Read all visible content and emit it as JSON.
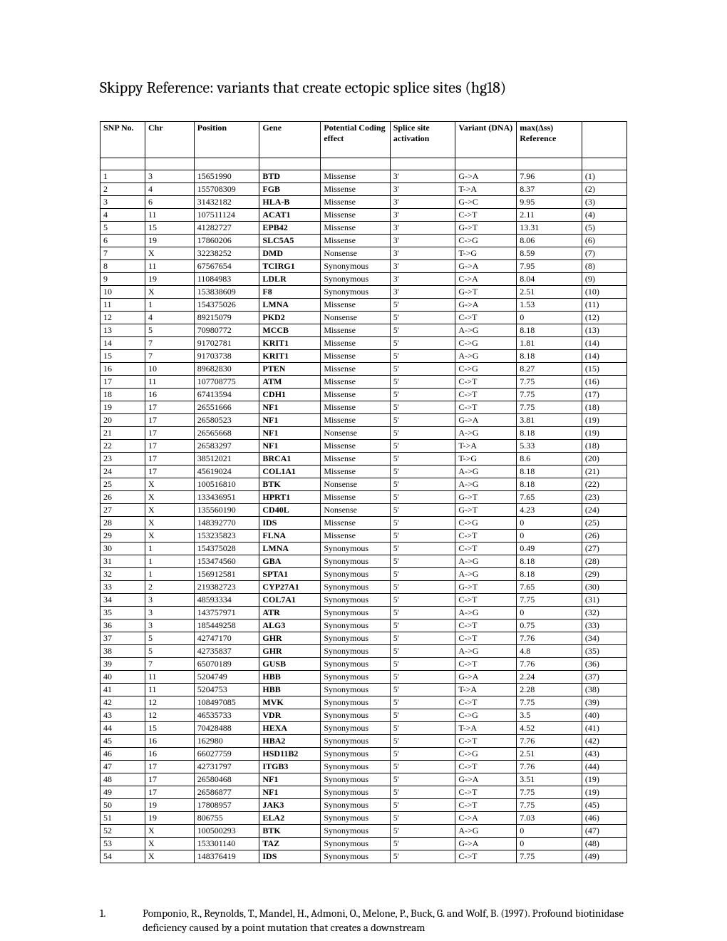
{
  "title": "Skippy Reference: variants that create ectopic splice sites (hg18)",
  "headers": {
    "snp": "SNP No.",
    "chr": "Chr",
    "pos": "Position",
    "gene": "Gene",
    "eff": "Potential Coding effect",
    "spl": "Splice site activation",
    "var": "Variant (DNA)",
    "max": "max(Δss) Reference",
    "ref": ""
  },
  "rows": [
    [
      "1",
      "3",
      "15651990",
      "BTD",
      "Missense",
      "3'",
      "G->A",
      "7.96",
      "(1)"
    ],
    [
      "2",
      "4",
      "155708309",
      "FGB",
      "Missense",
      "3'",
      "T->A",
      "8.37",
      "(2)"
    ],
    [
      "3",
      "6",
      "31432182",
      "HLA-B",
      "Missense",
      "3'",
      "G->C",
      "9.95",
      "(3)"
    ],
    [
      "4",
      "11",
      "107511124",
      "ACAT1",
      "Missense",
      "3'",
      "C->T",
      "2.11",
      "(4)"
    ],
    [
      "5",
      "15",
      "41282727",
      "EPB42",
      "Missense",
      "3'",
      "G->T",
      "13.31",
      "(5)"
    ],
    [
      "6",
      "19",
      "17860206",
      "SLC5A5",
      "Missense",
      "3'",
      "C->G",
      "8.06",
      "(6)"
    ],
    [
      "7",
      "X",
      "32238252",
      "DMD",
      "Nonsense",
      "3'",
      "T->G",
      "8.59",
      "(7)"
    ],
    [
      "8",
      "11",
      "67567654",
      "TCIRG1",
      "Synonymous",
      "3'",
      "G->A",
      "7.95",
      "(8)"
    ],
    [
      "9",
      "19",
      "11084983",
      "LDLR",
      "Synonymous",
      "3'",
      "C->A",
      "8.04",
      "(9)"
    ],
    [
      "10",
      "X",
      "153838609",
      "F8",
      "Synonymous",
      "3'",
      "G->T",
      "2.51",
      "(10)"
    ],
    [
      "11",
      "1",
      "154375026",
      "LMNA",
      "Missense",
      "5'",
      "G->A",
      "1.53",
      "(11)"
    ],
    [
      "12",
      "4",
      "89215079",
      "PKD2",
      "Nonsense",
      "5'",
      "C->T",
      "0",
      "(12)"
    ],
    [
      "13",
      "5",
      "70980772",
      "MCCB",
      "Missense",
      "5'",
      "A->G",
      "8.18",
      "(13)"
    ],
    [
      "14",
      "7",
      "91702781",
      "KRIT1",
      "Missense",
      "5'",
      "C->G",
      "1.81",
      "(14)"
    ],
    [
      "15",
      "7",
      "91703738",
      "KRIT1",
      "Missense",
      "5'",
      "A->G",
      "8.18",
      "(14)"
    ],
    [
      "16",
      "10",
      "89682830",
      "PTEN",
      "Missense",
      "5'",
      "C->G",
      "8.27",
      "(15)"
    ],
    [
      "17",
      "11",
      "107708775",
      "ATM",
      "Missense",
      "5'",
      "C->T",
      "7.75",
      "(16)"
    ],
    [
      "18",
      "16",
      "67413594",
      "CDH1",
      "Missense",
      "5'",
      "C->T",
      "7.75",
      "(17)"
    ],
    [
      "19",
      "17",
      "26551666",
      "NF1",
      "Missense",
      "5'",
      "C->T",
      "7.75",
      "(18)"
    ],
    [
      "20",
      "17",
      "26580523",
      "NF1",
      "Missense",
      "5'",
      "G->A",
      "3.81",
      "(19)"
    ],
    [
      "21",
      "17",
      "26565668",
      "NF1",
      "Nonsense",
      "5'",
      "A->G",
      "8.18",
      "(19)"
    ],
    [
      "22",
      "17",
      "26583297",
      "NF1",
      "Missense",
      "5'",
      "T->A",
      "5.33",
      "(18)"
    ],
    [
      "23",
      "17",
      "38512021",
      "BRCA1",
      "Missense",
      "5'",
      "T->G",
      "8.6",
      "(20)"
    ],
    [
      "24",
      "17",
      "45619024",
      "COL1A1",
      "Missense",
      "5'",
      "A->G",
      "8.18",
      "(21)"
    ],
    [
      "25",
      "X",
      "100516810",
      "BTK",
      "Nonsense",
      "5'",
      "A->G",
      "8.18",
      "(22)"
    ],
    [
      "26",
      "X",
      "133436951",
      "HPRT1",
      "Missense",
      "5'",
      "G->T",
      "7.65",
      "(23)"
    ],
    [
      "27",
      "X",
      "135560190",
      "CD40L",
      "Nonsense",
      "5'",
      "G->T",
      "4.23",
      "(24)"
    ],
    [
      "28",
      "X",
      "148392770",
      "IDS",
      "Missense",
      "5'",
      "C->G",
      "0",
      "(25)"
    ],
    [
      "29",
      "X",
      "153235823",
      "FLNA",
      "Missense",
      "5'",
      "C->T",
      "0",
      "(26)"
    ],
    [
      "30",
      "1",
      "154375028",
      "LMNA",
      "Synonymous",
      "5'",
      "C->T",
      "0.49",
      "(27)"
    ],
    [
      "31",
      "1",
      "153474560",
      "GBA",
      "Synonymous",
      "5'",
      "A->G",
      "8.18",
      "(28)"
    ],
    [
      "32",
      "1",
      "156912581",
      "SPTA1",
      "Synonymous",
      "5'",
      "A->G",
      "8.18",
      "(29)"
    ],
    [
      "33",
      "2",
      "219382723",
      "CYP27A1",
      "Synonymous",
      "5'",
      "G->T",
      "7.65",
      "(30)"
    ],
    [
      "34",
      "3",
      "48593334",
      "COL7A1",
      "Synonymous",
      "5'",
      "C->T",
      "7.75",
      "(31)"
    ],
    [
      "35",
      "3",
      "143757971",
      "ATR",
      "Synonymous",
      "5'",
      "A->G",
      "0",
      "(32)"
    ],
    [
      "36",
      "3",
      "185449258",
      "ALG3",
      "Synonymous",
      "5'",
      "C->T",
      "0.75",
      "(33)"
    ],
    [
      "37",
      "5",
      "42747170",
      "GHR",
      "Synonymous",
      "5'",
      "C->T",
      "7.76",
      "(34)"
    ],
    [
      "38",
      "5",
      "42735837",
      "GHR",
      "Synonymous",
      "5'",
      "A->G",
      "4.8",
      "(35)"
    ],
    [
      "39",
      "7",
      "65070189",
      "GUSB",
      "Synonymous",
      "5'",
      "C->T",
      "7.76",
      "(36)"
    ],
    [
      "40",
      "11",
      "5204749",
      "HBB",
      "Synonymous",
      "5'",
      "G->A",
      "2.24",
      "(37)"
    ],
    [
      "41",
      "11",
      "5204753",
      "HBB",
      "Synonymous",
      "5'",
      "T->A",
      "2.28",
      "(38)"
    ],
    [
      "42",
      "12",
      "108497085",
      "MVK",
      "Synonymous",
      "5'",
      "C->T",
      "7.75",
      "(39)"
    ],
    [
      "43",
      "12",
      "46535733",
      "VDR",
      "Synonymous",
      "5'",
      "C->G",
      "3.5",
      "(40)"
    ],
    [
      "44",
      "15",
      "70428488",
      "HEXA",
      "Synonymous",
      "5'",
      "T->A",
      "4.52",
      "(41)"
    ],
    [
      "45",
      "16",
      "162980",
      "HBA2",
      "Synonymous",
      "5'",
      "C->T",
      "7.76",
      "(42)"
    ],
    [
      "46",
      "16",
      "66027759",
      "HSD11B2",
      "Synonymous",
      "5'",
      "C->G",
      "2.51",
      "(43)"
    ],
    [
      "47",
      "17",
      "42731797",
      "ITGB3",
      "Synonymous",
      "5'",
      "C->T",
      "7.76",
      "(44)"
    ],
    [
      "48",
      "17",
      "26580468",
      "NF1",
      "Synonymous",
      "5'",
      "G->A",
      "3.51",
      "(19)"
    ],
    [
      "49",
      "17",
      "26586877",
      "NF1",
      "Synonymous",
      "5'",
      "C->T",
      "7.75",
      "(19)"
    ],
    [
      "50",
      "19",
      "17808957",
      "JAK3",
      "Synonymous",
      "5'",
      "C->T",
      "7.75",
      "(45)"
    ],
    [
      "51",
      "19",
      "806755",
      "ELA2",
      "Synonymous",
      "5'",
      "C->A",
      "7.03",
      "(46)"
    ],
    [
      "52",
      "X",
      "100500293",
      "BTK",
      "Synonymous",
      "5'",
      "A->G",
      "0",
      "(47)"
    ],
    [
      "53",
      "X",
      "153301140",
      "TAZ",
      "Synonymous",
      "5'",
      "G->A",
      "0",
      "(48)"
    ],
    [
      "54",
      "X",
      "148376419",
      "IDS",
      "Synonymous",
      "5'",
      "C->T",
      "7.75",
      "(49)"
    ]
  ],
  "reference": {
    "num": "1.",
    "text": "Pomponio, R., Reynolds, T., Mandel, H., Admoni, O., Melone, P., Buck, G. and Wolf, B. (1997). Profound biotinidase deficiency caused by a point mutation that creates a downstream"
  }
}
